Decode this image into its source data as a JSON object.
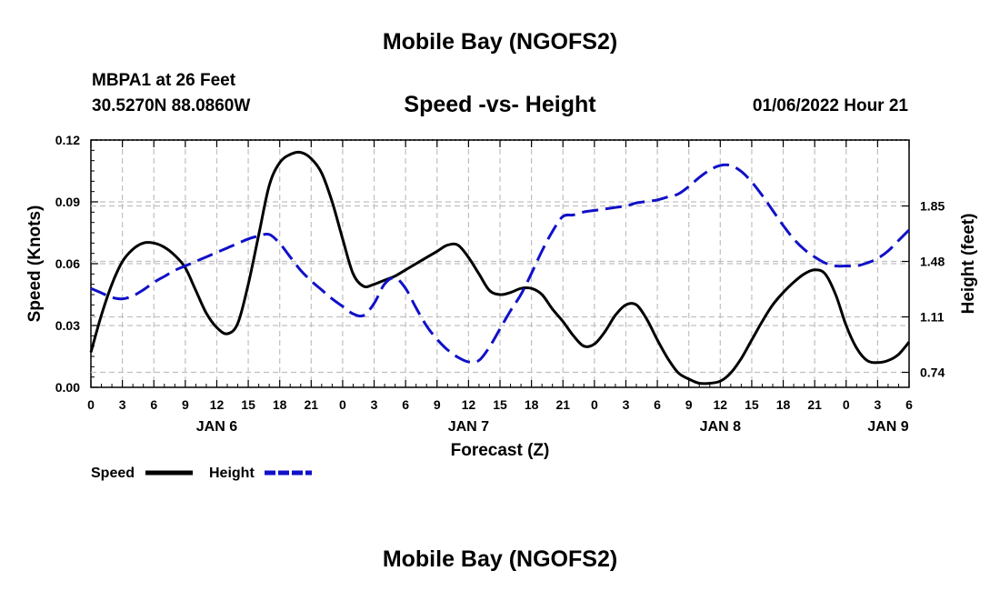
{
  "page": {
    "top_title": "Mobile Bay (NGOFS2)",
    "bottom_title": "Mobile Bay (NGOFS2)"
  },
  "header": {
    "station": "MBPA1 at 26 Feet",
    "coords": "30.5270N  88.0860W",
    "date": "01/06/2022 Hour 21"
  },
  "chart_data": {
    "type": "line",
    "title": "Speed -vs- Height",
    "xlabel": "Forecast (Z)",
    "ylabel_left": "Speed (Knots)",
    "ylabel_right": "Height (feet)",
    "x_range_hours": [
      0,
      78
    ],
    "x_ticks": [
      "0",
      "3",
      "6",
      "9",
      "12",
      "15",
      "18",
      "21",
      "0",
      "3",
      "6",
      "9",
      "12",
      "15",
      "18",
      "21",
      "0",
      "3",
      "6",
      "9",
      "12",
      "15",
      "18",
      "21",
      "0",
      "3",
      "6"
    ],
    "day_labels": [
      {
        "label": "JAN 6",
        "hour": 12
      },
      {
        "label": "JAN 7",
        "hour": 36
      },
      {
        "label": "JAN 8",
        "hour": 60
      },
      {
        "label": "JAN 9",
        "hour": 76
      }
    ],
    "y_left": {
      "range": [
        0,
        0.12
      ],
      "ticks": [
        "0.00",
        "0.03",
        "0.06",
        "0.09",
        "0.12"
      ],
      "tick_values": [
        0,
        0.03,
        0.06,
        0.09,
        0.12
      ]
    },
    "y_right": {
      "range": [
        0.64,
        2.29
      ],
      "ticks": [
        "0.74",
        "1.11",
        "1.48",
        "1.85"
      ],
      "tick_values": [
        0.74,
        1.11,
        1.48,
        1.85
      ]
    },
    "colors": {
      "speed": "#000000",
      "height": "#1010c8",
      "grid": "#c0c0c0"
    },
    "legend": {
      "speed": "Speed",
      "height": "Height"
    },
    "series": [
      {
        "name": "Speed",
        "axis": "left",
        "x": [
          0,
          1,
          2,
          3,
          4,
          5,
          6,
          7,
          8,
          9,
          10,
          11,
          12,
          13,
          14,
          15,
          16,
          17,
          18,
          19,
          20,
          21,
          22,
          23,
          24,
          25,
          26,
          27,
          28,
          29,
          30,
          31,
          32,
          33,
          34,
          35,
          36,
          37,
          38,
          39,
          40,
          41,
          42,
          43,
          44,
          45,
          46,
          47,
          48,
          49,
          50,
          51,
          52,
          53,
          54,
          55,
          56,
          57,
          58,
          59,
          60,
          61,
          62,
          63,
          64,
          65,
          66,
          67,
          68,
          69,
          70,
          71,
          72,
          73,
          74,
          75,
          76,
          77,
          78
        ],
        "values": [
          0.017,
          0.035,
          0.05,
          0.061,
          0.067,
          0.07,
          0.07,
          0.068,
          0.064,
          0.058,
          0.047,
          0.036,
          0.029,
          0.026,
          0.031,
          0.05,
          0.074,
          0.098,
          0.109,
          0.113,
          0.114,
          0.111,
          0.104,
          0.09,
          0.072,
          0.055,
          0.049,
          0.05,
          0.052,
          0.054,
          0.057,
          0.06,
          0.063,
          0.066,
          0.069,
          0.069,
          0.063,
          0.055,
          0.047,
          0.045,
          0.046,
          0.048,
          0.048,
          0.045,
          0.038,
          0.032,
          0.025,
          0.02,
          0.021,
          0.027,
          0.035,
          0.04,
          0.04,
          0.033,
          0.023,
          0.014,
          0.007,
          0.004,
          0.002,
          0.002,
          0.003,
          0.007,
          0.014,
          0.023,
          0.032,
          0.04,
          0.046,
          0.051,
          0.055,
          0.057,
          0.055,
          0.045,
          0.03,
          0.019,
          0.013,
          0.012,
          0.013,
          0.016,
          0.022
        ]
      },
      {
        "name": "Height",
        "axis": "right",
        "x": [
          0,
          1,
          2,
          3,
          4,
          5,
          6,
          7,
          8,
          9,
          10,
          11,
          12,
          13,
          14,
          15,
          16,
          17,
          18,
          19,
          20,
          21,
          22,
          23,
          24,
          25,
          26,
          27,
          28,
          29,
          30,
          31,
          32,
          33,
          34,
          35,
          36,
          37,
          38,
          39,
          40,
          41,
          42,
          43,
          44,
          45,
          46,
          47,
          48,
          49,
          50,
          51,
          52,
          53,
          54,
          55,
          56,
          57,
          58,
          59,
          60,
          61,
          62,
          63,
          64,
          65,
          66,
          67,
          68,
          69,
          70,
          71,
          72,
          73,
          74,
          75,
          76,
          77,
          78
        ],
        "values": [
          1.3,
          1.27,
          1.24,
          1.23,
          1.25,
          1.29,
          1.34,
          1.38,
          1.42,
          1.45,
          1.48,
          1.51,
          1.54,
          1.57,
          1.6,
          1.63,
          1.65,
          1.66,
          1.6,
          1.51,
          1.42,
          1.35,
          1.29,
          1.23,
          1.18,
          1.13,
          1.12,
          1.2,
          1.33,
          1.37,
          1.3,
          1.17,
          1.05,
          0.96,
          0.89,
          0.84,
          0.81,
          0.82,
          0.91,
          1.03,
          1.15,
          1.26,
          1.4,
          1.55,
          1.68,
          1.78,
          1.79,
          1.81,
          1.82,
          1.83,
          1.84,
          1.85,
          1.87,
          1.88,
          1.89,
          1.91,
          1.93,
          1.98,
          2.04,
          2.09,
          2.12,
          2.12,
          2.08,
          2.01,
          1.92,
          1.82,
          1.72,
          1.63,
          1.56,
          1.51,
          1.47,
          1.45,
          1.45,
          1.45,
          1.47,
          1.5,
          1.55,
          1.62,
          1.69
        ]
      }
    ]
  }
}
